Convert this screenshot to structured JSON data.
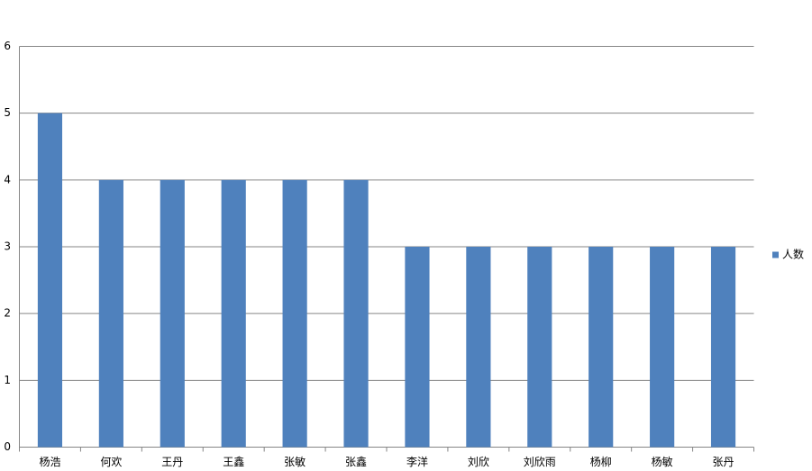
{
  "chart_data": {
    "type": "bar",
    "categories": [
      "杨浩",
      "何欢",
      "王丹",
      "王鑫",
      "张敏",
      "张鑫",
      "李洋",
      "刘欣",
      "刘欣雨",
      "杨柳",
      "杨敏",
      "张丹"
    ],
    "series": [
      {
        "name": "人数",
        "color": "#4f81bd",
        "values": [
          5,
          4,
          4,
          4,
          4,
          4,
          3,
          3,
          3,
          3,
          3,
          3
        ]
      }
    ],
    "ylim": [
      0,
      6
    ],
    "yticks": [
      0,
      1,
      2,
      3,
      4,
      5,
      6
    ],
    "grid": true,
    "legend": "right"
  }
}
